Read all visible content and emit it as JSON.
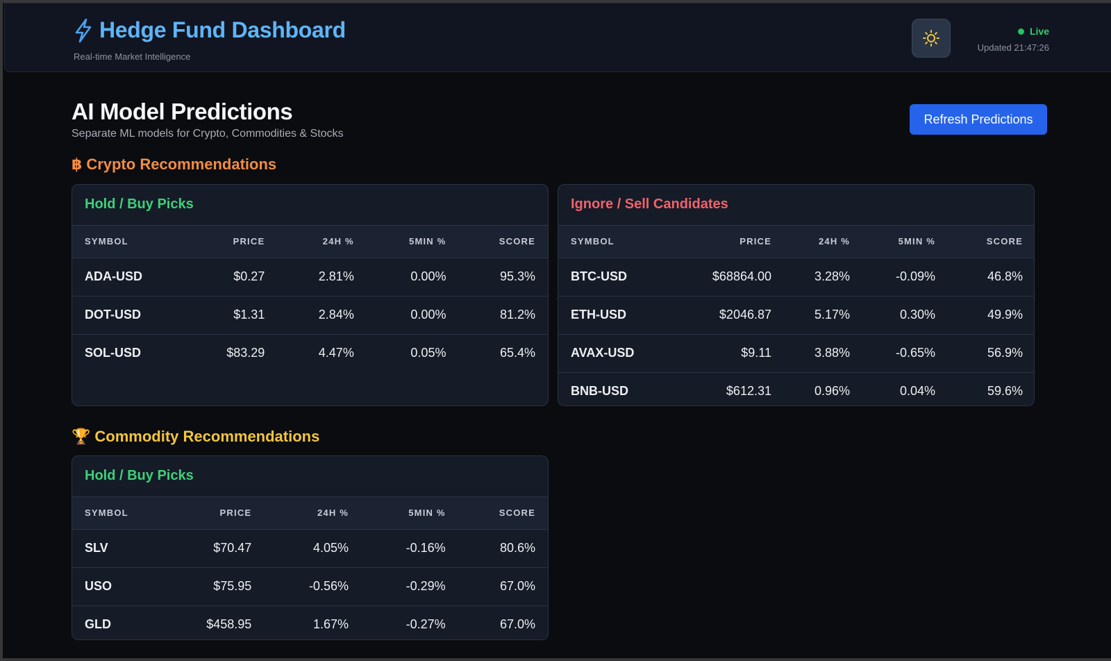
{
  "header": {
    "title": "Hedge Fund Dashboard",
    "subtitle": "Real-time Market Intelligence",
    "status": "Live",
    "updated": "Updated 21:47:26",
    "icons": {
      "brand": "lightning-bolt-icon",
      "theme": "sun-icon"
    },
    "colors": {
      "brand": "#5eb5f7",
      "live": "#22c55e"
    }
  },
  "page": {
    "title": "AI Model Predictions",
    "subtitle": "Separate ML models for Crypto, Commodities & Stocks",
    "refresh_label": "Refresh Predictions",
    "accent": "#2563eb"
  },
  "crypto": {
    "glyph": "฿",
    "title": "Crypto Recommendations",
    "buy": {
      "title": "Hold / Buy Picks",
      "columns": [
        "SYMBOL",
        "PRICE",
        "24H %",
        "5MIN %",
        "SCORE"
      ],
      "rows": [
        [
          "ADA-USD",
          "$0.27",
          "2.81%",
          "0.00%",
          "95.3%"
        ],
        [
          "DOT-USD",
          "$1.31",
          "2.84%",
          "0.00%",
          "81.2%"
        ],
        [
          "SOL-USD",
          "$83.29",
          "4.47%",
          "0.05%",
          "65.4%"
        ]
      ]
    },
    "sell": {
      "title": "Ignore / Sell Candidates",
      "columns": [
        "SYMBOL",
        "PRICE",
        "24H %",
        "5MIN %",
        "SCORE"
      ],
      "rows": [
        [
          "BTC-USD",
          "$68864.00",
          "3.28%",
          "-0.09%",
          "46.8%"
        ],
        [
          "ETH-USD",
          "$2046.87",
          "5.17%",
          "0.30%",
          "49.9%"
        ],
        [
          "AVAX-USD",
          "$9.11",
          "3.88%",
          "-0.65%",
          "56.9%"
        ],
        [
          "BNB-USD",
          "$612.31",
          "0.96%",
          "0.04%",
          "59.6%"
        ]
      ]
    }
  },
  "commodity": {
    "glyph": "🏆",
    "title": "Commodity Recommendations",
    "buy": {
      "title": "Hold / Buy Picks",
      "columns": [
        "SYMBOL",
        "PRICE",
        "24H %",
        "5MIN %",
        "SCORE"
      ],
      "rows": [
        [
          "SLV",
          "$70.47",
          "4.05%",
          "-0.16%",
          "80.6%"
        ],
        [
          "USO",
          "$75.95",
          "-0.56%",
          "-0.29%",
          "67.0%"
        ],
        [
          "GLD",
          "$458.95",
          "1.67%",
          "-0.27%",
          "67.0%"
        ]
      ]
    }
  }
}
